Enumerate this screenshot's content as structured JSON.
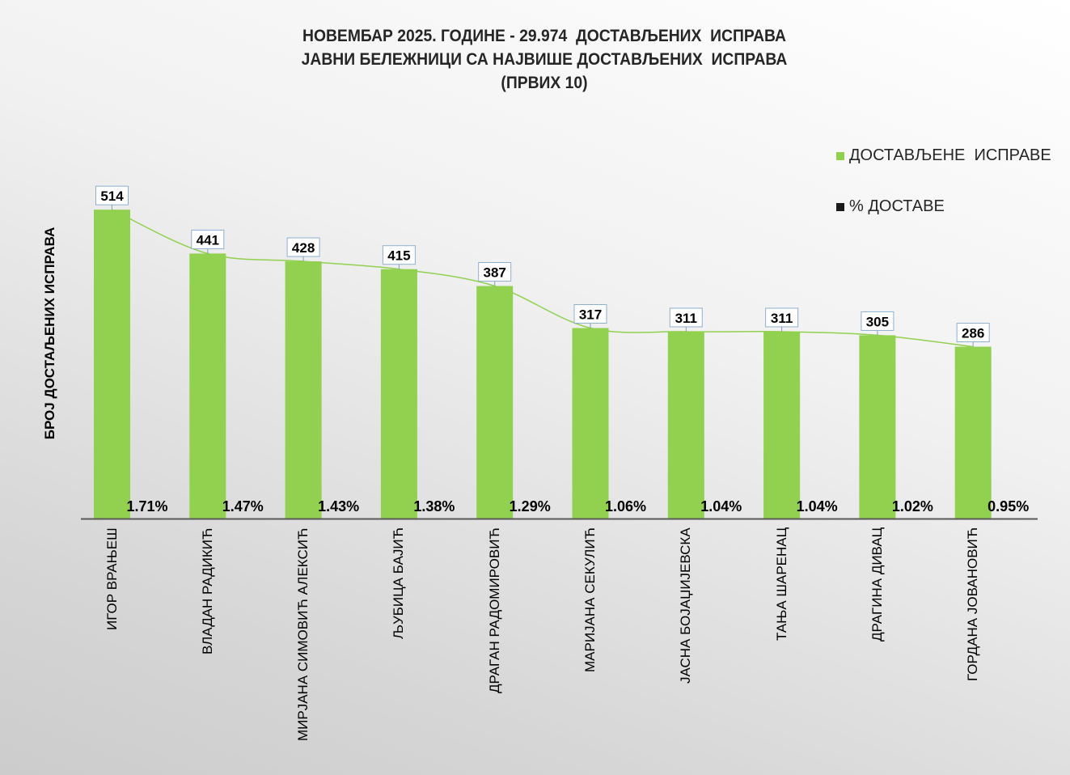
{
  "chart_data": {
    "type": "bar",
    "title": [
      "НОВЕМБАР 2025. ГОДИНЕ - 29.974  ДОСТАВЉЕНИХ  ИСПРАВА",
      "ЈАВНИ БЕЛЕЖНИЦИ СА НАЈВИШЕ ДОСТАВЉЕНИХ  ИСПРАВА",
      "(ПРВИХ 10)"
    ],
    "ylabel": "БРОЈ ДОСТАЉЕНИХ ИСПРАВА",
    "xlabel": "",
    "categories": [
      "ИГОР ВРАЊЕШ",
      "ВЛАДАН РАДИКИЋ",
      "МИРЈАНА СИМОВИЋ АЛЕКСИЋ",
      "ЉУБИЦА БАЈИЋ",
      "ДРАГАН РАДОМИРОВИЋ",
      "МАРИЈАНА СЕКУЛИЋ",
      "ЈАСНА БОЈАЏИЈЕВСКА",
      "ТАЊА ШАРЕНАЦ",
      "ДРАГИНА ДИВАЦ",
      "ГОРДАНА ЈОВАНОВИЋ"
    ],
    "series": [
      {
        "name": "ДОСТАВЉЕНЕ  ИСПРАВЕ",
        "color": "#92d050",
        "values": [
          514,
          441,
          428,
          415,
          387,
          317,
          311,
          311,
          305,
          286
        ]
      },
      {
        "name": "% ДОСТАВЕ",
        "color": "#1a1a1a",
        "values": [
          "1.71%",
          "1.47%",
          "1.43%",
          "1.38%",
          "1.29%",
          "1.06%",
          "1.04%",
          "1.04%",
          "1.02%",
          "0.95%"
        ]
      }
    ],
    "trendline": {
      "type": "smooth",
      "color": "#92d050"
    },
    "ylim": [
      0,
      700
    ],
    "grid": false,
    "legend": "right"
  }
}
